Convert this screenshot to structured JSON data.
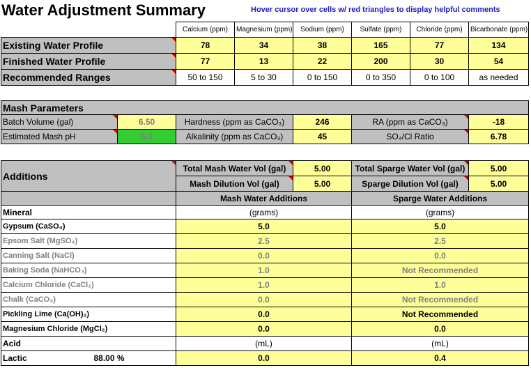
{
  "title": "Water Adjustment Summary",
  "hint": "Hover cursor over cells w/ red triangles to display helpful comments",
  "ions": [
    "Calcium (ppm)",
    "Magnesium (ppm)",
    "Sodium (ppm)",
    "Sulfate (ppm)",
    "Chloride (ppm)",
    "Bicarbonate (ppm)"
  ],
  "profiles": [
    {
      "label": "Existing Water Profile",
      "values": [
        "78",
        "34",
        "38",
        "165",
        "77",
        "134"
      ]
    },
    {
      "label": "Finished Water Profile",
      "values": [
        "77",
        "13",
        "22",
        "200",
        "30",
        "54"
      ]
    },
    {
      "label": "Recommended Ranges",
      "values": [
        "50 to 150",
        "5 to 30",
        "0 to 150",
        "0 to 350",
        "0 to 100",
        "as needed"
      ]
    }
  ],
  "mash": {
    "header": "Mash Parameters",
    "batch_label": "Batch Volume (gal)",
    "batch_value": "6.50",
    "ph_label": "Estimated Mash pH",
    "ph_value": "5.3",
    "hardness_label": "Hardness (ppm as CaCO₃)",
    "hardness_value": "246",
    "alkalinity_label": "Alkalinity (ppm as CaCO₃)",
    "alkalinity_value": "45",
    "ra_label": "RA (ppm as CaCO₃)",
    "ra_value": "-18",
    "ratio_label": "SO₄/Cl Ratio",
    "ratio_value": "6.78"
  },
  "additions": {
    "header": "Additions",
    "total_mash_label": "Total Mash Water Vol (gal)",
    "total_mash_value": "5.00",
    "mash_dilution_label": "Mash Dilution Vol (gal)",
    "mash_dilution_value": "5.00",
    "total_sparge_label": "Total Sparge Water Vol (gal)",
    "total_sparge_value": "5.00",
    "sparge_dilution_label": "Sparge Dilution Vol (gal)",
    "sparge_dilution_value": "5.00",
    "mash_col": "Mash Water Additions",
    "sparge_col": "Sparge Water Additions",
    "mineral_label": "Mineral",
    "grams": "(grams)",
    "minerals": [
      {
        "name": "Gypsum (CaSO₄)",
        "mash": "5.0",
        "sparge": "5.0",
        "active": true
      },
      {
        "name": "Epsom Salt (MgSO₄)",
        "mash": "2.5",
        "sparge": "2.5",
        "active": false
      },
      {
        "name": "Canning Salt (NaCl)",
        "mash": "0.0",
        "sparge": "0.0",
        "active": false
      },
      {
        "name": "Baking Soda (NaHCO₃)",
        "mash": "1.0",
        "sparge": "Not Recommended",
        "active": false
      },
      {
        "name": "Calcium Chloride (CaCl₂)",
        "mash": "1.0",
        "sparge": "1.0",
        "active": false
      },
      {
        "name": "Chalk (CaCO₃)",
        "mash": "0.0",
        "sparge": "Not Recommended",
        "active": false
      },
      {
        "name": "Pickling Lime (Ca(OH)₂)",
        "mash": "0.0",
        "sparge": "Not Recommended",
        "active": true
      },
      {
        "name": "Magnesium Chloride (MgCl₂)",
        "mash": "0.0",
        "sparge": "0.0",
        "active": true
      }
    ],
    "acid_label": "Acid",
    "ml": "(mL)",
    "acid_name": "Lactic",
    "acid_pct": "88.00 %",
    "acid_mash": "0.0",
    "acid_sparge": "0.4"
  }
}
